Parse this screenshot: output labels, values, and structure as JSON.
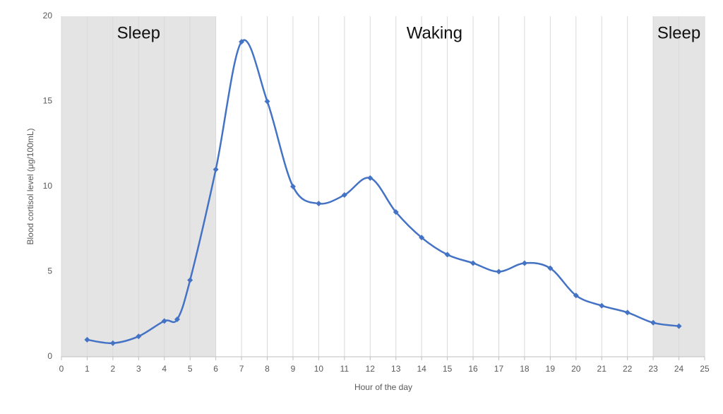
{
  "chart_data": {
    "type": "line",
    "x_label": "Hour of the day",
    "y_label": "Blood cortisol level (μg/100mL)",
    "x": [
      1,
      2,
      3,
      4,
      4.5,
      5,
      6,
      7,
      8,
      9,
      10,
      11,
      12,
      13,
      14,
      15,
      16,
      17,
      18,
      19,
      20,
      21,
      22,
      23,
      24
    ],
    "series": [
      {
        "color": "#4472c4",
        "values": [
          1,
          0.8,
          1.2,
          2.1,
          2.2,
          4.5,
          11,
          18.5,
          15,
          10,
          9,
          9.5,
          10.5,
          8.5,
          7,
          6,
          5.5,
          5,
          5.5,
          5.2,
          3.6,
          3,
          2.6,
          2,
          1.8
        ]
      }
    ],
    "xlim": [
      0,
      25
    ],
    "xticks": [
      0,
      1,
      2,
      3,
      4,
      5,
      6,
      7,
      8,
      9,
      10,
      11,
      12,
      13,
      14,
      15,
      16,
      17,
      18,
      19,
      20,
      21,
      22,
      23,
      24,
      25
    ],
    "ylim": [
      0,
      20
    ],
    "yticks": [
      0,
      5,
      10,
      15,
      20
    ],
    "grid": true,
    "bands": [
      {
        "label": "Sleep",
        "range": [
          0,
          6
        ],
        "shaded": true
      },
      {
        "label": "Waking",
        "range": [
          6,
          23
        ],
        "shaded": false
      },
      {
        "label": "Sleep",
        "range": [
          23,
          25
        ],
        "shaded": true
      }
    ]
  }
}
